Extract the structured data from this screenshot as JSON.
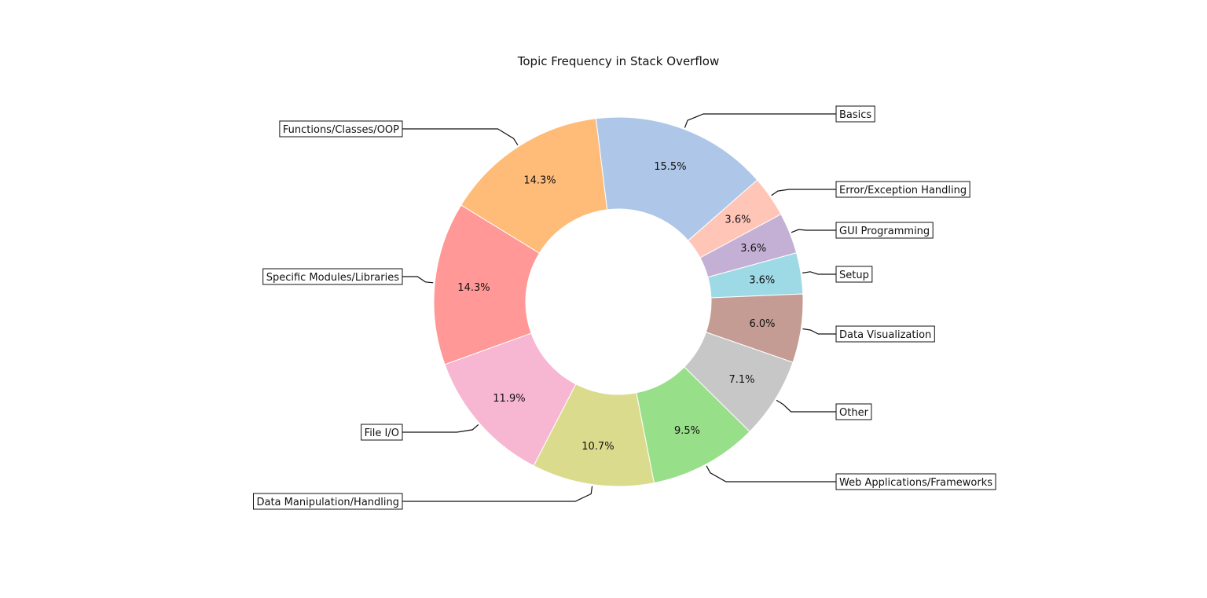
{
  "chart_data": {
    "type": "pie",
    "style": "donut",
    "title": "Topic Frequency in Stack Overflow",
    "start_angle_deg": 97,
    "direction": "clockwise",
    "categories": [
      "Basics",
      "Error/Exception Handling",
      "GUI Programming",
      "Setup",
      "Data Visualization",
      "Other",
      "Web Applications/Frameworks",
      "Data Manipulation/Handling",
      "File I/O",
      "Specific Modules/Libraries",
      "Functions/Classes/OOP"
    ],
    "values": [
      15.5,
      3.6,
      3.6,
      3.6,
      6.0,
      7.1,
      9.5,
      10.7,
      11.9,
      14.3,
      14.3
    ],
    "percent_labels": [
      "15.5%",
      "3.6%",
      "3.6%",
      "3.6%",
      "6.0%",
      "7.1%",
      "9.5%",
      "10.7%",
      "11.9%",
      "14.3%",
      "14.3%"
    ],
    "colors": [
      "#aec7e8",
      "#ffc5b7",
      "#c5b0d5",
      "#9edae5",
      "#c49c94",
      "#c7c7c7",
      "#98df8a",
      "#dbdb8d",
      "#f7b6d2",
      "#ff9896",
      "#ffbb78"
    ],
    "legend": "none"
  }
}
